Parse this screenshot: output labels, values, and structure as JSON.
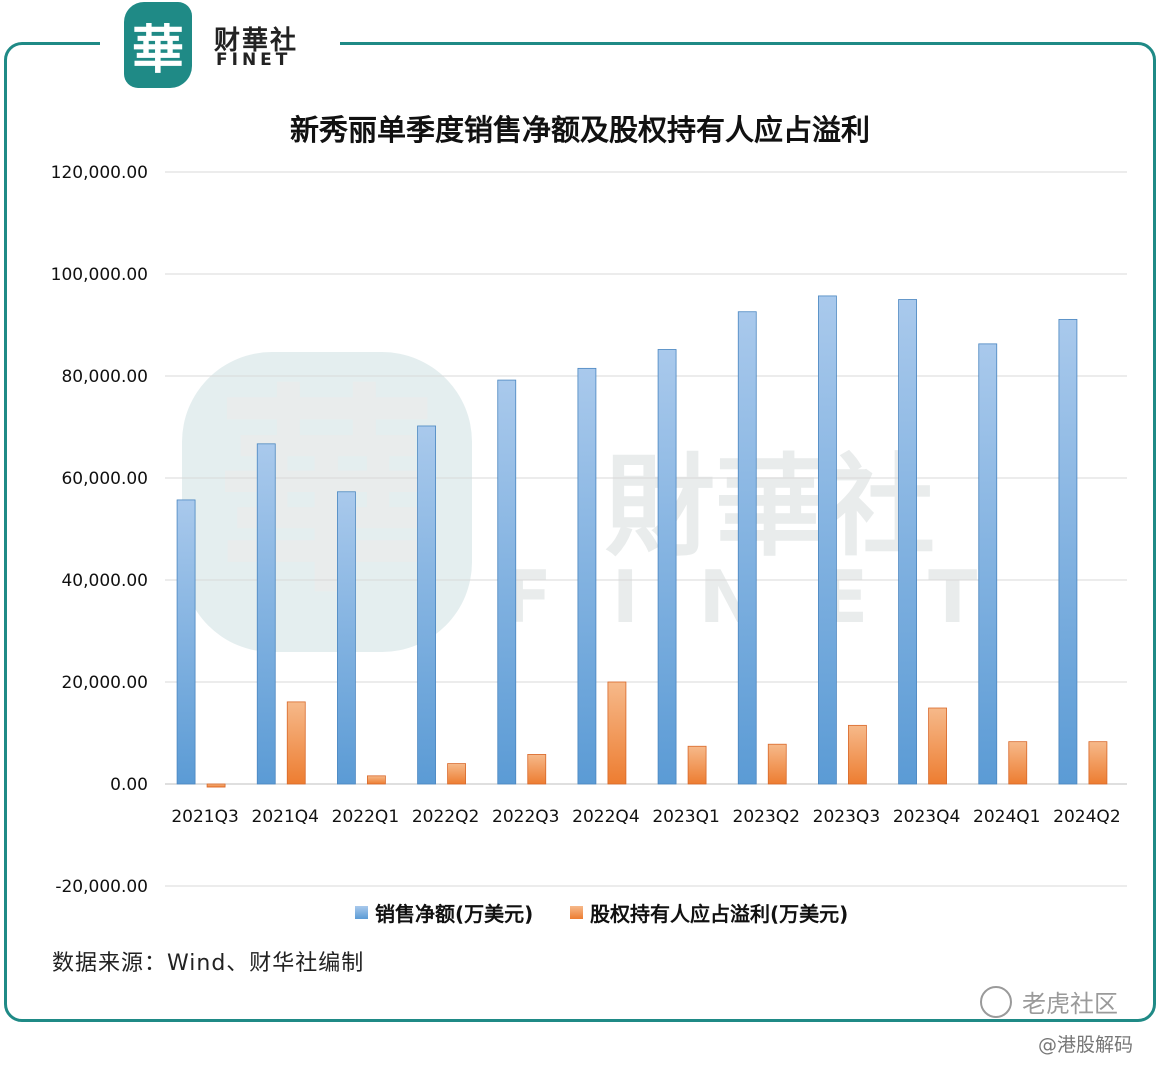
{
  "logo": {
    "mark": "華",
    "cn": "财華社",
    "en": "FINET"
  },
  "watermark": {
    "mark": "華",
    "cn": "財華社",
    "en": "FINET"
  },
  "source_text": "数据来源：Wind、财华社编制",
  "corner": {
    "brand": "老虎社区",
    "handle": "@港股解码"
  },
  "colors": {
    "series1": "#5b9bd5",
    "series1_light": "#a9c9ec",
    "series2": "#ed7d31",
    "series2_light": "#f6b98a",
    "frame": "#1f8a86",
    "grid": "#d9d9d9"
  },
  "chart_data": {
    "type": "bar",
    "title": "新秀丽单季度销售净额及股权持有人应占溢利",
    "categories": [
      "2021Q3",
      "2021Q4",
      "2022Q1",
      "2022Q2",
      "2022Q3",
      "2022Q4",
      "2023Q1",
      "2023Q2",
      "2023Q3",
      "2023Q4",
      "2024Q1",
      "2024Q2"
    ],
    "series": [
      {
        "name": "销售净额(万美元)",
        "values": [
          55700,
          66700,
          57300,
          70200,
          79200,
          81500,
          85200,
          92600,
          95700,
          95000,
          86300,
          91100
        ]
      },
      {
        "name": "股权持有人应占溢利(万美元)",
        "values": [
          -600,
          16100,
          1600,
          4000,
          5800,
          20000,
          7400,
          7800,
          11500,
          14900,
          8300,
          8300
        ]
      }
    ],
    "yticks": [
      "120,000.00",
      "100,000.00",
      "80,000.00",
      "60,000.00",
      "40,000.00",
      "20,000.00",
      "0.00",
      "-20,000.00"
    ],
    "ylim": [
      -20000,
      120000
    ],
    "grid": true,
    "legend_position": "bottom"
  }
}
